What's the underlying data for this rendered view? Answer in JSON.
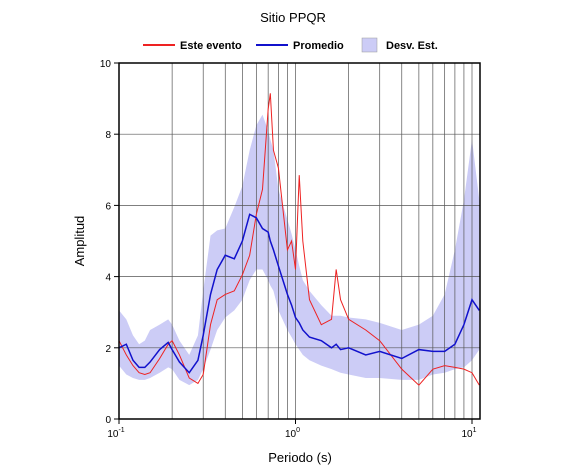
{
  "chart_data": {
    "type": "line",
    "title": "Sitio PPQR",
    "x_label": "Periodo (s)",
    "y_label": "Amplitud",
    "x_log_scale": true,
    "grid": true,
    "xlim": [
      0.1,
      11.1
    ],
    "ylim": [
      0,
      10
    ],
    "xticks": [
      {
        "value": 0.1,
        "label": "10",
        "exponent": "-1"
      },
      {
        "value": 1,
        "label": "10",
        "exponent": "0"
      },
      {
        "value": 10,
        "label": "10",
        "exponent": "1"
      }
    ],
    "x_grid_lines": [
      0.2,
      0.3,
      0.4,
      0.5,
      0.6,
      0.7,
      0.8,
      0.9,
      1,
      2,
      3,
      4,
      5,
      6,
      7,
      8,
      9,
      10
    ],
    "yticks": [
      0,
      2,
      4,
      6,
      8,
      10
    ],
    "x": [
      0.1,
      0.11,
      0.12,
      0.13,
      0.14,
      0.15,
      0.17,
      0.19,
      0.2,
      0.22,
      0.25,
      0.28,
      0.3,
      0.33,
      0.36,
      0.4,
      0.45,
      0.5,
      0.55,
      0.6,
      0.65,
      0.7,
      0.72,
      0.75,
      0.8,
      0.9,
      0.95,
      1.0,
      1.05,
      1.1,
      1.2,
      1.4,
      1.6,
      1.7,
      1.8,
      2,
      2.5,
      3,
      4,
      5,
      6,
      7,
      8,
      9,
      10,
      11
    ],
    "series": [
      {
        "name": "Este evento",
        "color": "#ee2222",
        "values": [
          2.2,
          1.8,
          1.5,
          1.3,
          1.25,
          1.3,
          1.7,
          2.1,
          2.2,
          1.8,
          1.15,
          1.0,
          1.25,
          2.65,
          3.35,
          3.5,
          3.6,
          4.05,
          4.6,
          5.75,
          6.45,
          8.7,
          9.15,
          7.55,
          7.05,
          4.75,
          5.0,
          4.2,
          6.85,
          5.0,
          3.35,
          2.65,
          2.8,
          4.2,
          3.35,
          2.8,
          2.5,
          2.2,
          1.4,
          0.95,
          1.4,
          1.5,
          1.45,
          1.4,
          1.3,
          0.95
        ]
      },
      {
        "name": "Promedio",
        "color": "#1111cc",
        "values": [
          2.0,
          2.1,
          1.65,
          1.45,
          1.45,
          1.6,
          1.95,
          2.15,
          1.95,
          1.6,
          1.3,
          1.65,
          2.35,
          3.5,
          4.2,
          4.6,
          4.5,
          5.0,
          5.75,
          5.65,
          5.35,
          5.25,
          5.0,
          4.75,
          4.3,
          3.5,
          3.2,
          2.85,
          2.7,
          2.5,
          2.3,
          2.2,
          2.0,
          2.1,
          1.95,
          2.0,
          1.8,
          1.9,
          1.7,
          1.95,
          1.9,
          1.9,
          2.1,
          2.65,
          3.35,
          3.05
        ]
      }
    ],
    "band": {
      "name": "Desv. Est.",
      "color": "#ccccf6",
      "lower": [
        1.5,
        1.25,
        1.15,
        1.1,
        1.1,
        1.15,
        1.3,
        1.45,
        1.4,
        1.1,
        0.95,
        1.1,
        1.4,
        1.95,
        2.5,
        2.85,
        3.05,
        3.35,
        3.9,
        4.2,
        4.2,
        3.9,
        3.75,
        3.6,
        3.05,
        2.5,
        2.3,
        2.1,
        1.95,
        1.8,
        1.65,
        1.5,
        1.4,
        1.35,
        1.3,
        1.25,
        1.15,
        1.15,
        1.1,
        1.1,
        1.25,
        1.3,
        1.4,
        1.45,
        1.65,
        1.95
      ],
      "upper": [
        3.05,
        2.8,
        2.35,
        2.1,
        2.2,
        2.5,
        2.65,
        2.8,
        2.65,
        2.2,
        1.8,
        2.35,
        3.6,
        5.15,
        5.3,
        5.35,
        5.95,
        6.55,
        7.55,
        8.25,
        8.55,
        8.1,
        7.85,
        7.55,
        6.45,
        5.6,
        5.2,
        4.75,
        4.3,
        3.9,
        3.6,
        3.2,
        2.9,
        2.9,
        2.9,
        2.85,
        2.8,
        2.7,
        2.5,
        2.65,
        2.9,
        3.5,
        4.75,
        6.15,
        7.85,
        6.15
      ]
    }
  }
}
